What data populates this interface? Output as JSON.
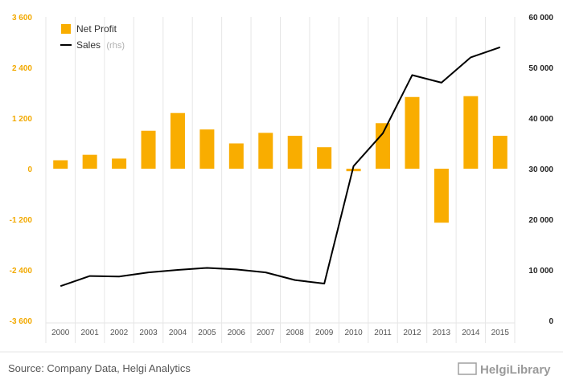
{
  "chart_data": {
    "type": "bar",
    "categories": [
      "2000",
      "2001",
      "2002",
      "2003",
      "2004",
      "2005",
      "2006",
      "2007",
      "2008",
      "2009",
      "2010",
      "2011",
      "2012",
      "2013",
      "2014",
      "2015"
    ],
    "series": [
      {
        "name": "Net Profit",
        "type": "bar",
        "axis": "left",
        "color": "#f9ad00",
        "values": [
          200,
          330,
          240,
          900,
          1320,
          930,
          600,
          850,
          780,
          510,
          -60,
          1080,
          1700,
          -1280,
          1720,
          780
        ]
      },
      {
        "name": "Sales",
        "name_suffix": "(rhs)",
        "type": "line",
        "axis": "right",
        "color": "#000000",
        "values": [
          6800,
          8800,
          8700,
          9500,
          10000,
          10400,
          10100,
          9500,
          8000,
          7300,
          30500,
          37000,
          48500,
          47000,
          52000,
          54000
        ]
      }
    ],
    "yaxis_left": {
      "min": -3600,
      "max": 3600,
      "ticks": [
        "3 600",
        "2 400",
        "1 200",
        "0",
        "-1 200",
        "-2 400",
        "-3 600"
      ],
      "tick_values": [
        3600,
        2400,
        1200,
        0,
        -1200,
        -2400,
        -3600
      ]
    },
    "yaxis_right": {
      "min": 0,
      "max": 60000,
      "ticks": [
        "60 000",
        "50 000",
        "40 000",
        "30 000",
        "20 000",
        "10 000",
        "0"
      ],
      "tick_values": [
        60000,
        50000,
        40000,
        30000,
        20000,
        10000,
        0
      ]
    },
    "grid": "vertical",
    "legend": "top-left"
  },
  "source": "Source: Company Data, Helgi Analytics",
  "logo": "HelgiLibrary",
  "colors": {
    "left_axis": "#f2a900",
    "grid": "#e6e6e6"
  }
}
